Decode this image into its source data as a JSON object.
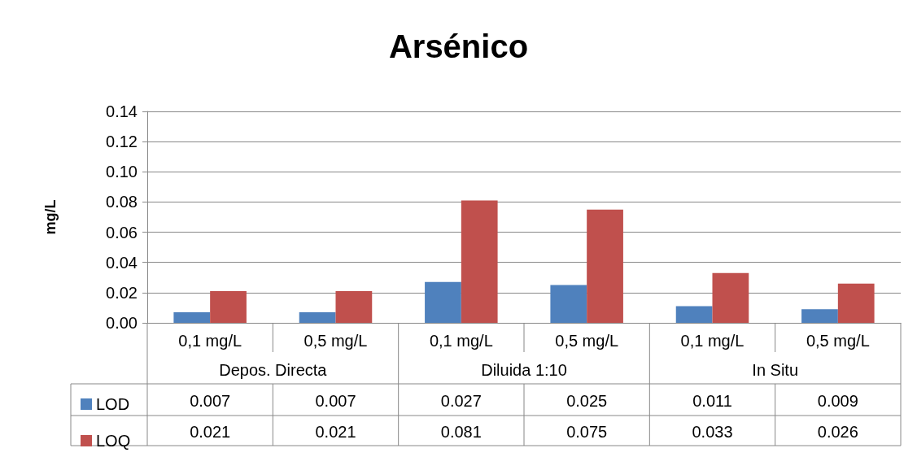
{
  "chart_data": {
    "type": "bar",
    "title": "Arsénico",
    "ylabel": "mg/L",
    "categories": [
      "0,1 mg/L",
      "0,5 mg/L",
      "0,1 mg/L",
      "0,5 mg/L",
      "0,1 mg/L",
      "0,5 mg/L"
    ],
    "annotations": [
      "Depos. Directa",
      "Diluida 1:10",
      "In Situ"
    ],
    "series": [
      {
        "name": "LOD",
        "color": "#4f81bd",
        "values": [
          0.007,
          0.007,
          0.027,
          0.025,
          0.011,
          0.009
        ]
      },
      {
        "name": "LOQ",
        "color": "#c0504d",
        "values": [
          0.021,
          0.021,
          0.081,
          0.075,
          0.033,
          0.026
        ]
      }
    ],
    "ylim": [
      0,
      0.14
    ],
    "yticks": [
      {
        "value": 0,
        "label": "0.00"
      },
      {
        "value": 0.02,
        "label": "0.02"
      },
      {
        "value": 0.04,
        "label": "0.04"
      },
      {
        "value": 0.06,
        "label": "0.06"
      },
      {
        "value": 0.08,
        "label": "0.08"
      },
      {
        "value": 0.1,
        "label": "0.10"
      },
      {
        "value": 0.12,
        "label": "0.12"
      },
      {
        "value": 0.14,
        "label": "0.14"
      }
    ],
    "grid": "y",
    "legend": "bottom left",
    "data_labels": true
  }
}
